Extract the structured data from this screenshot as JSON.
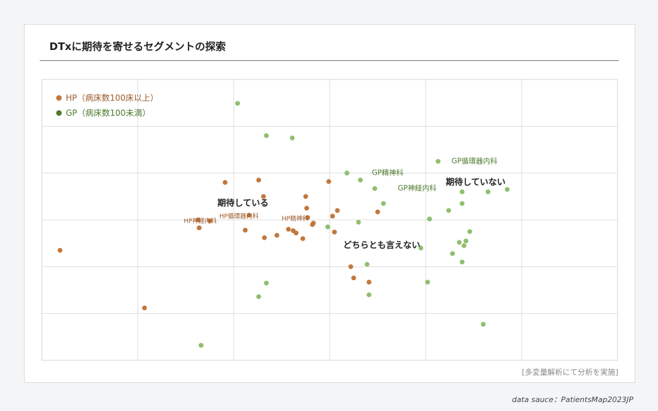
{
  "title": "DTxに期待を寄せるセグメントの探索",
  "note": "[多変量解析にて分析を実施]",
  "source": "data sauce：PatientsMap2023JP",
  "colors": {
    "hp": "#c4773b",
    "gp": "#8fbf6e",
    "hp_text": "#9a5a2a",
    "gp_text": "#4c7a2e"
  },
  "chart_data": {
    "type": "scatter",
    "title": "DTxに期待を寄せるセグメントの探索",
    "xlabel": "",
    "ylabel": "",
    "xlim": [
      0,
      6
    ],
    "ylim": [
      0,
      6
    ],
    "grid": true,
    "legend_position": "top-left",
    "series": [
      {
        "key": "hp",
        "name": "HP（病床数100床以上）",
        "points": [
          [
            0.19,
            2.35
          ],
          [
            1.07,
            1.12
          ],
          [
            1.63,
            3.0
          ],
          [
            1.64,
            2.83
          ],
          [
            1.75,
            2.98
          ],
          [
            1.91,
            3.8
          ],
          [
            2.12,
            2.78
          ],
          [
            2.16,
            3.1
          ],
          [
            2.26,
            3.85
          ],
          [
            2.32,
            2.62
          ],
          [
            2.31,
            3.5
          ],
          [
            2.45,
            2.67
          ],
          [
            2.57,
            2.8
          ],
          [
            2.62,
            2.77
          ],
          [
            2.65,
            2.72
          ],
          [
            2.72,
            2.6
          ],
          [
            2.75,
            3.5
          ],
          [
            2.77,
            3.05
          ],
          [
            2.76,
            3.25
          ],
          [
            2.82,
            2.9
          ],
          [
            2.83,
            2.93
          ],
          [
            2.99,
            3.82
          ],
          [
            3.03,
            3.08
          ],
          [
            3.05,
            2.74
          ],
          [
            3.08,
            3.2
          ],
          [
            3.22,
            2.0
          ],
          [
            3.25,
            1.76
          ],
          [
            3.41,
            1.67
          ],
          [
            3.5,
            3.17
          ]
        ],
        "labels": [
          {
            "text": "HP神経内科",
            "x": 1.48,
            "y": 2.97
          },
          {
            "text": "HP循環器内科",
            "x": 1.85,
            "y": 3.07
          },
          {
            "text": "HP精神科",
            "x": 2.5,
            "y": 3.02
          }
        ]
      },
      {
        "key": "gp",
        "name": "GP（病床数100未満）",
        "points": [
          [
            1.66,
            0.32
          ],
          [
            2.04,
            5.49
          ],
          [
            2.26,
            1.36
          ],
          [
            2.34,
            1.65
          ],
          [
            2.34,
            4.8
          ],
          [
            2.61,
            4.75
          ],
          [
            2.98,
            2.85
          ],
          [
            3.18,
            4.0
          ],
          [
            3.3,
            2.95
          ],
          [
            3.32,
            3.85
          ],
          [
            3.39,
            2.05
          ],
          [
            3.41,
            1.4
          ],
          [
            3.47,
            3.67
          ],
          [
            3.56,
            3.35
          ],
          [
            3.95,
            2.4
          ],
          [
            4.02,
            1.67
          ],
          [
            4.04,
            3.02
          ],
          [
            4.13,
            4.25
          ],
          [
            4.24,
            3.2
          ],
          [
            4.28,
            2.28
          ],
          [
            4.35,
            2.52
          ],
          [
            4.38,
            3.6
          ],
          [
            4.38,
            3.35
          ],
          [
            4.38,
            2.1
          ],
          [
            4.4,
            2.45
          ],
          [
            4.42,
            2.55
          ],
          [
            4.46,
            2.75
          ],
          [
            4.6,
            0.77
          ],
          [
            4.65,
            3.6
          ],
          [
            4.85,
            3.65
          ]
        ],
        "labels": [
          {
            "text": "GP精神科",
            "x": 3.44,
            "y": 4.0
          },
          {
            "text": "GP循環器内科",
            "x": 4.27,
            "y": 4.25
          },
          {
            "text": "GP神経内科",
            "x": 3.71,
            "y": 3.67
          }
        ]
      }
    ],
    "annotations": [
      {
        "text": "期待している",
        "x": 1.83,
        "y": 3.35
      },
      {
        "text": "期待していない",
        "x": 4.21,
        "y": 3.8
      },
      {
        "text": "どちらとも言えない",
        "x": 3.14,
        "y": 2.45
      }
    ]
  }
}
